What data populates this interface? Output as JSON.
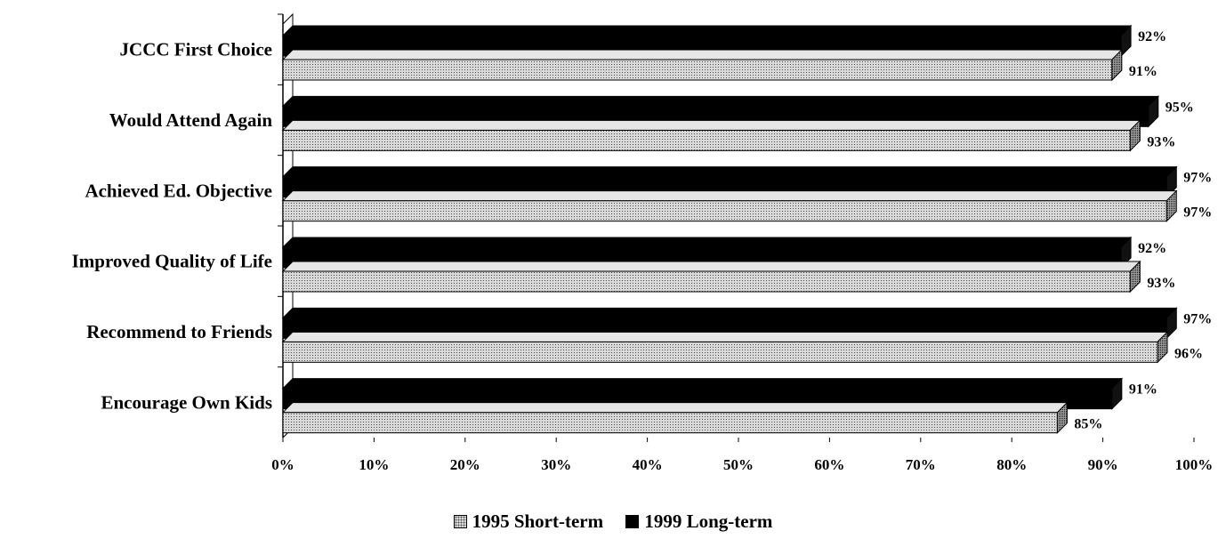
{
  "chart_data": {
    "type": "bar",
    "orientation": "horizontal",
    "categories": [
      "JCCC First Choice",
      "Would Attend Again",
      "Achieved Ed. Objective",
      "Improved Quality of Life",
      "Recommend to Friends",
      "Encourage Own Kids"
    ],
    "series": [
      {
        "name": "1995 Short-term",
        "values": [
          91,
          93,
          97,
          93,
          96,
          85
        ],
        "labels": [
          "91%",
          "93%",
          "97%",
          "93%",
          "96%",
          "85%"
        ],
        "pattern": "dotted",
        "color": "#cfcfcf"
      },
      {
        "name": "1999 Long-term",
        "values": [
          92,
          95,
          97,
          92,
          97,
          91
        ],
        "labels": [
          "92%",
          "95%",
          "97%",
          "92%",
          "97%",
          "91%"
        ],
        "pattern": "solid",
        "color": "#000000"
      }
    ],
    "xlim": [
      0,
      100
    ],
    "xticks": [
      "0%",
      "10%",
      "20%",
      "30%",
      "40%",
      "50%",
      "60%",
      "70%",
      "80%",
      "90%",
      "100%"
    ],
    "legend_position": "bottom-center",
    "grid": false,
    "style": "3d"
  }
}
